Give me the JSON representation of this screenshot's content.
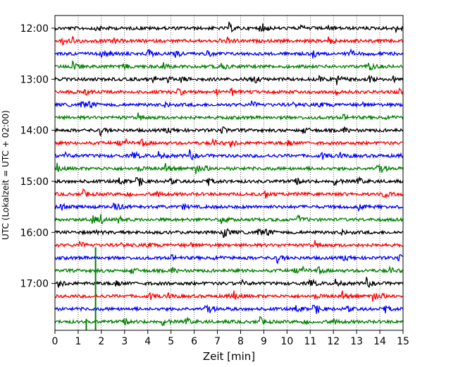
{
  "chart_data": {
    "type": "line",
    "title": "",
    "xlabel": "Zeit  [min]",
    "ylabel": "UTC (Lokalzeit = UTC + 02:00)",
    "xlim": [
      0,
      15
    ],
    "x_ticks": [
      "0",
      "1",
      "2",
      "3",
      "4",
      "5",
      "6",
      "7",
      "8",
      "9",
      "10",
      "11",
      "12",
      "13",
      "14",
      "15"
    ],
    "y_ticks": [
      "12:00",
      "13:00",
      "14:00",
      "15:00",
      "16:00",
      "17:00"
    ],
    "vertical_gridlines": "dotted at every minute",
    "trace_interval_minutes": 15,
    "start_time": "12:00",
    "trace_colors": [
      "#000000",
      "#ff0000",
      "#0000ff",
      "#008000"
    ],
    "series": [
      {
        "start": "12:00",
        "color": "#000000"
      },
      {
        "start": "12:15",
        "color": "#ff0000"
      },
      {
        "start": "12:30",
        "color": "#0000ff"
      },
      {
        "start": "12:45",
        "color": "#008000"
      },
      {
        "start": "13:00",
        "color": "#000000"
      },
      {
        "start": "13:15",
        "color": "#ff0000"
      },
      {
        "start": "13:30",
        "color": "#0000ff"
      },
      {
        "start": "13:45",
        "color": "#008000"
      },
      {
        "start": "14:00",
        "color": "#000000"
      },
      {
        "start": "14:15",
        "color": "#ff0000"
      },
      {
        "start": "14:30",
        "color": "#0000ff"
      },
      {
        "start": "14:45",
        "color": "#008000"
      },
      {
        "start": "15:00",
        "color": "#000000"
      },
      {
        "start": "15:15",
        "color": "#ff0000"
      },
      {
        "start": "15:30",
        "color": "#0000ff"
      },
      {
        "start": "15:45",
        "color": "#008000"
      },
      {
        "start": "16:00",
        "color": "#000000"
      },
      {
        "start": "16:15",
        "color": "#ff0000"
      },
      {
        "start": "16:30",
        "color": "#0000ff"
      },
      {
        "start": "16:45",
        "color": "#008000"
      },
      {
        "start": "17:00",
        "color": "#000000"
      },
      {
        "start": "17:15",
        "color": "#ff0000"
      },
      {
        "start": "17:30",
        "color": "#0000ff"
      },
      {
        "start": "17:45",
        "color": "#008000"
      }
    ],
    "events": [
      {
        "trace_start": "16:15",
        "minute": 1.75,
        "color": "#008000"
      },
      {
        "trace_start": "17:30",
        "minute": 1.35,
        "color": "#008000"
      }
    ]
  }
}
